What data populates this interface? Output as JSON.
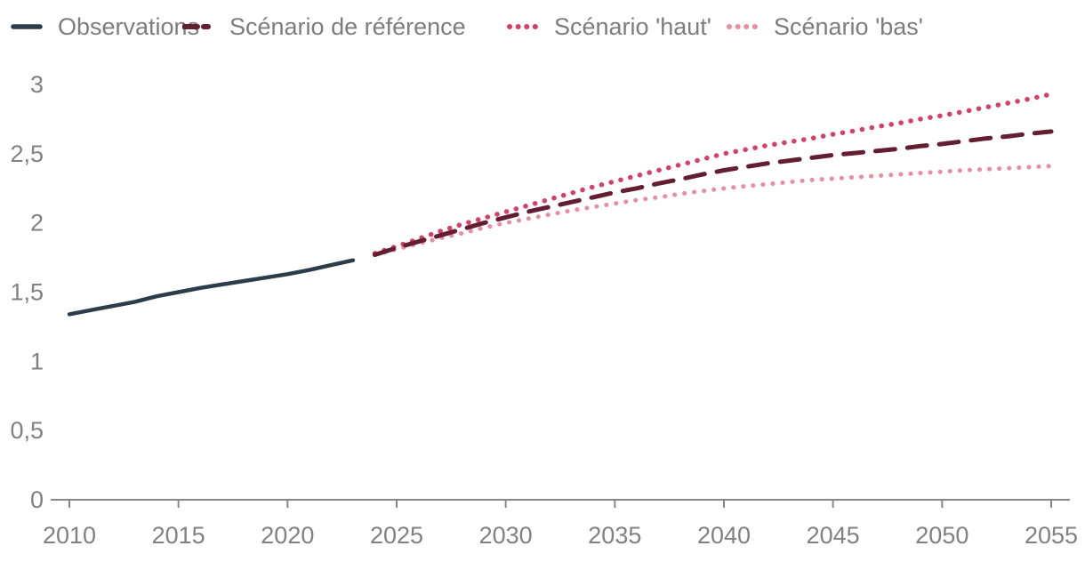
{
  "page": {
    "background": "#ffffff",
    "text_color": "#7d7d7d",
    "axis_color": "#888888"
  },
  "legend": {
    "position": "top-left",
    "items": [
      {
        "label": "Observations",
        "color": "#2d3c4a",
        "style": "solid"
      },
      {
        "label": "Scénario de référence",
        "color": "#641e31",
        "style": "dashed"
      },
      {
        "label": "Scénario 'haut'",
        "color": "#d64066",
        "style": "dotted"
      },
      {
        "label": "Scénario 'bas'",
        "color": "#ea8da4",
        "style": "dotted"
      }
    ]
  },
  "chart_data": {
    "type": "line",
    "title": "",
    "xlabel": "",
    "ylabel": "",
    "grid": false,
    "legend_position": "top-left",
    "x_axis": {
      "range": [
        2010,
        2055
      ],
      "ticks": [
        2010,
        2015,
        2020,
        2025,
        2030,
        2035,
        2040,
        2045,
        2050,
        2055
      ],
      "tick_labels": [
        "2010",
        "2015",
        "2020",
        "2025",
        "2030",
        "2035",
        "2040",
        "2045",
        "2050",
        "2055"
      ]
    },
    "y_axis": {
      "range": [
        0,
        3
      ],
      "ticks": [
        0,
        0.5,
        1,
        1.5,
        2,
        2.5,
        3
      ],
      "tick_labels": [
        "0",
        "0,5",
        "1",
        "1,5",
        "2",
        "2,5",
        "3"
      ]
    },
    "series": [
      {
        "name": "Observations",
        "color": "#2d3c4a",
        "line_style": "solid",
        "width": 4.5,
        "x_start": 2010,
        "x_step": 1,
        "values": [
          1.34,
          1.37,
          1.4,
          1.43,
          1.47,
          1.5,
          1.53,
          1.555,
          1.58,
          1.605,
          1.63,
          1.66,
          1.695,
          1.73
        ]
      },
      {
        "name": "Scénario de référence",
        "color": "#641e31",
        "line_style": "dashed",
        "width": 5,
        "x_start": 2024,
        "x_step": 1,
        "values": [
          1.77,
          1.82,
          1.865,
          1.91,
          1.955,
          2.0,
          2.04,
          2.08,
          2.115,
          2.15,
          2.185,
          2.22,
          2.25,
          2.285,
          2.315,
          2.35,
          2.38,
          2.405,
          2.43,
          2.45,
          2.47,
          2.49,
          2.505,
          2.52,
          2.535,
          2.555,
          2.57,
          2.59,
          2.61,
          2.625,
          2.645,
          2.66
        ]
      },
      {
        "name": "Scénario 'haut'",
        "color": "#d64066",
        "line_style": "dotted",
        "width": 5.5,
        "x_start": 2024,
        "x_step": 1,
        "values": [
          1.78,
          1.83,
          1.885,
          1.94,
          1.99,
          2.035,
          2.08,
          2.125,
          2.17,
          2.215,
          2.26,
          2.3,
          2.34,
          2.38,
          2.42,
          2.46,
          2.5,
          2.53,
          2.56,
          2.585,
          2.61,
          2.64,
          2.665,
          2.695,
          2.72,
          2.75,
          2.775,
          2.805,
          2.835,
          2.865,
          2.895,
          2.93
        ]
      },
      {
        "name": "Scénario 'bas'",
        "color": "#ea8da4",
        "line_style": "dotted",
        "width": 5,
        "x_start": 2024,
        "x_step": 1,
        "values": [
          1.77,
          1.81,
          1.85,
          1.89,
          1.925,
          1.965,
          2.0,
          2.03,
          2.06,
          2.09,
          2.115,
          2.14,
          2.165,
          2.185,
          2.21,
          2.23,
          2.25,
          2.265,
          2.28,
          2.295,
          2.31,
          2.32,
          2.33,
          2.34,
          2.35,
          2.36,
          2.37,
          2.38,
          2.388,
          2.395,
          2.403,
          2.41
        ]
      }
    ]
  }
}
